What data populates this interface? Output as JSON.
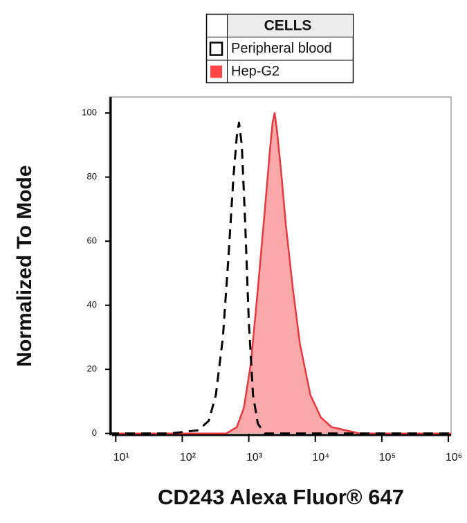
{
  "chart_data": {
    "type": "area",
    "x_label": "CD243 Alexa Fluor® 647",
    "y_label": "Normalized To Mode",
    "legend_title": "CELLS",
    "x_log": true,
    "xlim": [
      8,
      1100000
    ],
    "ylim": [
      -0.5,
      105
    ],
    "xticks": [
      {
        "value": 10,
        "label": "10¹"
      },
      {
        "value": 100,
        "label": "10²"
      },
      {
        "value": 1000,
        "label": "10³"
      },
      {
        "value": 10000,
        "label": "10⁴"
      },
      {
        "value": 100000,
        "label": "10⁵"
      },
      {
        "value": 1000000,
        "label": "10⁶"
      }
    ],
    "yticks": [
      0,
      20,
      40,
      60,
      80,
      100
    ],
    "series": [
      {
        "name": "Peripheral blood",
        "color": "#000000",
        "dashed": true,
        "fill": null,
        "x": [
          8,
          66,
          175,
          251,
          320,
          408,
          495,
          587,
          662,
          713,
          785,
          885,
          1000,
          1157,
          1370,
          1747,
          1100000
        ],
        "values": [
          0,
          0,
          1,
          4,
          12,
          30,
          55,
          80,
          93,
          97,
          90,
          65,
          35,
          12,
          3,
          0,
          0
        ]
      },
      {
        "name": "Hep-G2",
        "color": "#e8383d",
        "dashed": false,
        "fill": "#f9a9a9",
        "x": [
          8,
          460,
          662,
          843,
          1076,
          1370,
          1747,
          2070,
          2280,
          2450,
          2635,
          3050,
          3610,
          4605,
          5865,
          8435,
          12130,
          17460,
          28380,
          46040,
          1100000
        ],
        "values": [
          0,
          0,
          2,
          8,
          22,
          45,
          70,
          88,
          97,
          100,
          95,
          82,
          65,
          45,
          28,
          12,
          5,
          2,
          1,
          0,
          0
        ]
      }
    ]
  }
}
